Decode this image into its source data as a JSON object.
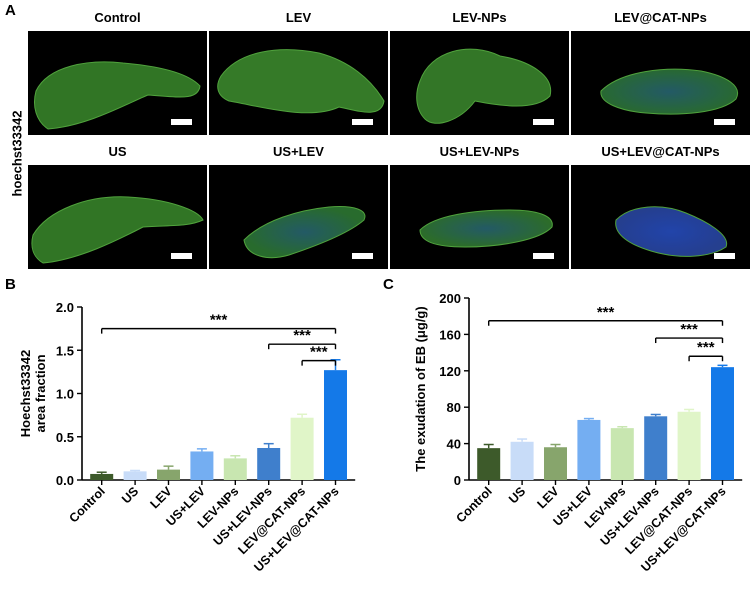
{
  "panels": {
    "a": "A",
    "b": "B",
    "c": "C"
  },
  "stain_label": "hoechst33342",
  "micrographs": [
    {
      "label": "Control",
      "tissue": "#3a8a2c",
      "blue": 0.0
    },
    {
      "label": "LEV",
      "tissue": "#3f9030",
      "blue": 0.0
    },
    {
      "label": "LEV-NPs",
      "tissue": "#3d8b2e",
      "blue": 0.05
    },
    {
      "label": "LEV@CAT-NPs",
      "tissue": "#2f7c3a",
      "blue": 0.35
    },
    {
      "label": "US",
      "tissue": "#3a8a2c",
      "blue": 0.05
    },
    {
      "label": "US+LEV",
      "tissue": "#2f7e35",
      "blue": 0.25
    },
    {
      "label": "US+LEV-NPs",
      "tissue": "#347f32",
      "blue": 0.25
    },
    {
      "label": "US+LEV@CAT-NPs",
      "tissue": "#2c4aa8",
      "blue": 0.75
    }
  ],
  "chart_data": [
    {
      "type": "bar",
      "ylabel": "Hoechst33342 area fraction",
      "ylim": [
        0,
        2.0
      ],
      "yticks": [
        "0.0",
        "0.5",
        "1.0",
        "1.5",
        "2.0"
      ],
      "categories": [
        "Control",
        "US",
        "LEV",
        "US+LEV",
        "LEV-NPs",
        "US+LEV-NPs",
        "LEV@CAT-NPs",
        "US+LEV@CAT-NPs"
      ],
      "values": [
        0.07,
        0.1,
        0.12,
        0.33,
        0.25,
        0.37,
        0.72,
        1.27
      ],
      "errors": [
        0.02,
        0.01,
        0.04,
        0.03,
        0.03,
        0.05,
        0.04,
        0.12
      ],
      "colors": [
        "#3d5a2a",
        "#c8dcf8",
        "#87a56c",
        "#74aef2",
        "#c8e6b0",
        "#3f7fcc",
        "#e0f5c8",
        "#1479e8"
      ],
      "significance": [
        {
          "from": 0,
          "to": 7,
          "label": "***",
          "y": 1.75
        },
        {
          "from": 5,
          "to": 7,
          "label": "***",
          "y": 1.57
        },
        {
          "from": 6,
          "to": 7,
          "label": "***",
          "y": 1.38
        }
      ]
    },
    {
      "type": "bar",
      "ylabel": "The exudation of EB  (μg/g)",
      "ylim": [
        0,
        200
      ],
      "yticks": [
        "0",
        "40",
        "80",
        "120",
        "160",
        "200"
      ],
      "categories": [
        "Control",
        "US",
        "LEV",
        "US+LEV",
        "LEV-NPs",
        "US+LEV-NPs",
        "LEV@CAT-NPs",
        "US+LEV@CAT-NPs"
      ],
      "values": [
        35,
        42,
        36,
        66,
        57,
        70,
        75,
        124
      ],
      "errors": [
        4,
        3,
        3,
        1.5,
        1.5,
        2,
        2.5,
        2
      ],
      "colors": [
        "#3d5a2a",
        "#c8dcf8",
        "#87a56c",
        "#74aef2",
        "#c8e6b0",
        "#3f7fcc",
        "#e0f5c8",
        "#1479e8"
      ],
      "significance": [
        {
          "from": 0,
          "to": 7,
          "label": "***",
          "y": 175
        },
        {
          "from": 5,
          "to": 7,
          "label": "***",
          "y": 156
        },
        {
          "from": 6,
          "to": 7,
          "label": "***",
          "y": 136
        }
      ]
    }
  ]
}
